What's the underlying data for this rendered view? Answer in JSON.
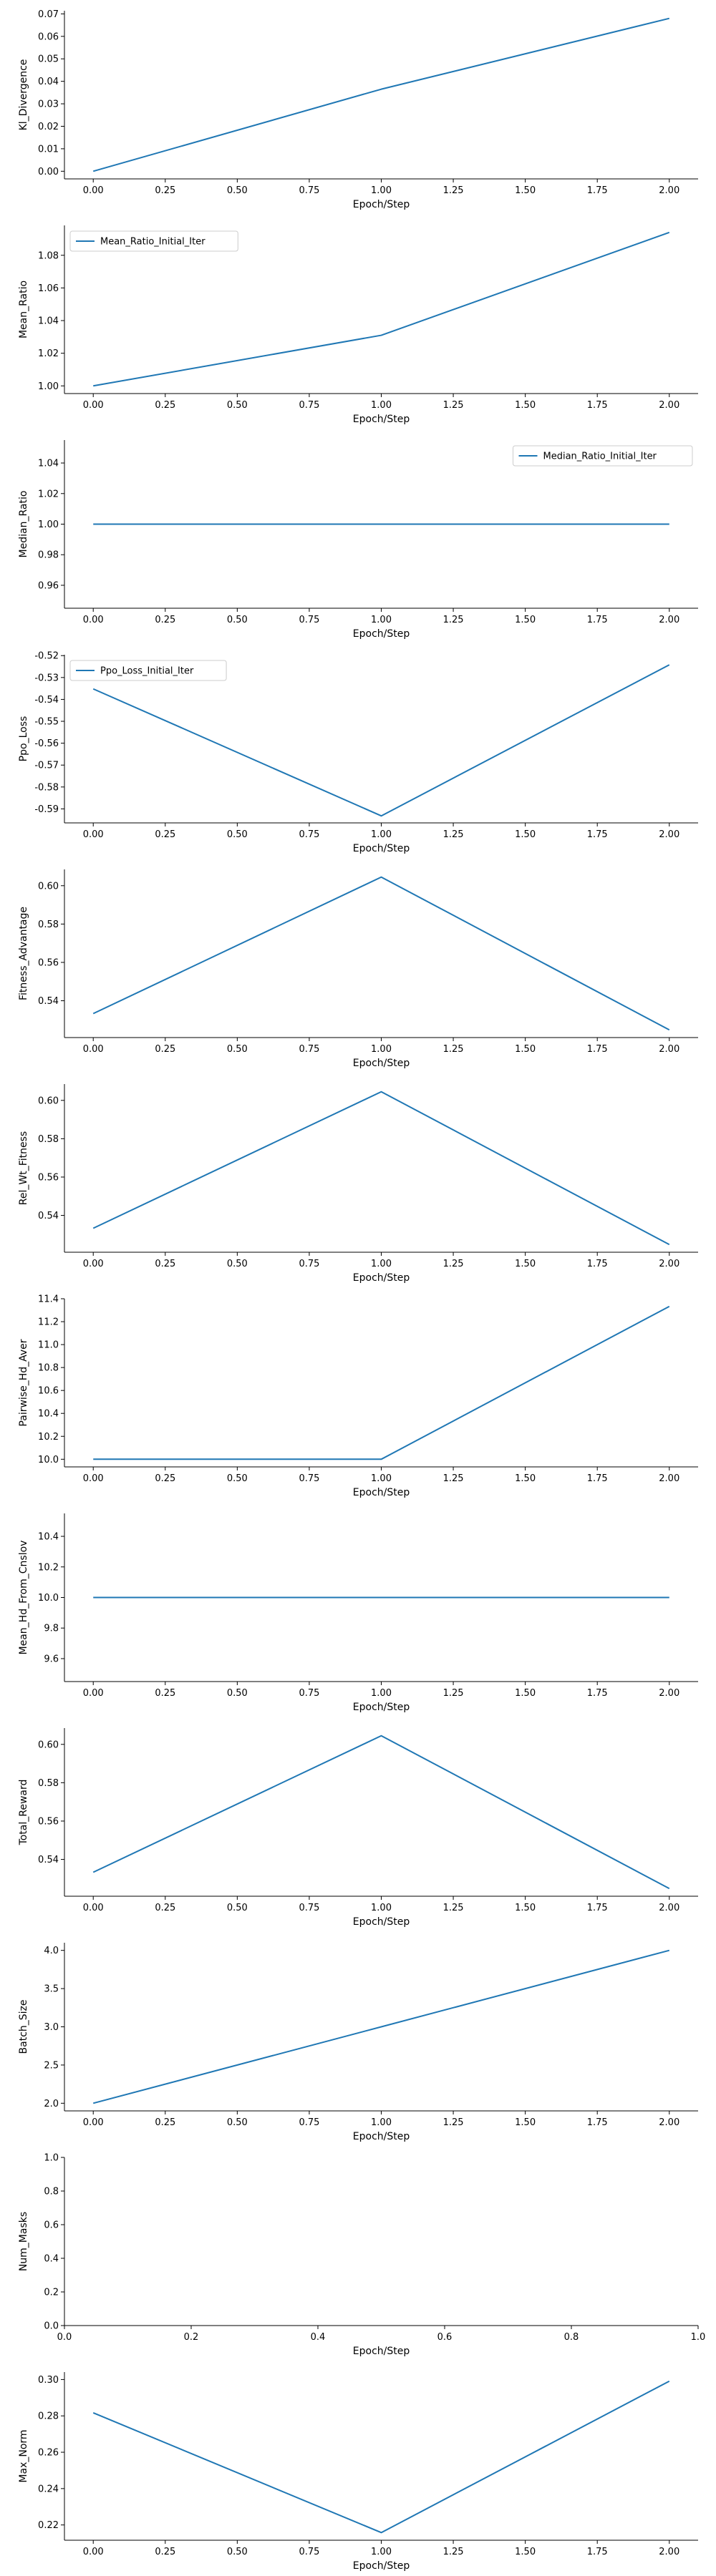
{
  "chart_data": [
    {
      "type": "line",
      "xlabel": "Epoch/Step",
      "ylabel": "Kl_Divergence",
      "xlim": [
        -0.1,
        2.1
      ],
      "ylim": [
        -0.0034,
        0.0714
      ],
      "xticks": [
        "0.00",
        "0.25",
        "0.50",
        "0.75",
        "1.00",
        "1.25",
        "1.50",
        "1.75",
        "2.00"
      ],
      "yticks": [
        "0.00",
        "0.01",
        "0.02",
        "0.03",
        "0.04",
        "0.05",
        "0.06",
        "0.07"
      ],
      "legend": null,
      "series": [
        {
          "x": [
            0,
            1,
            2
          ],
          "values": [
            0.0,
            0.0365,
            0.068
          ]
        }
      ]
    },
    {
      "type": "line",
      "xlabel": "Epoch/Step",
      "ylabel": "Mean_Ratio",
      "xlim": [
        -0.1,
        2.1
      ],
      "ylim": [
        0.9953,
        1.0983
      ],
      "xticks": [
        "0.00",
        "0.25",
        "0.50",
        "0.75",
        "1.00",
        "1.25",
        "1.50",
        "1.75",
        "2.00"
      ],
      "yticks": [
        "1.00",
        "1.02",
        "1.04",
        "1.06",
        "1.08"
      ],
      "legend": "upper-left",
      "series": [
        {
          "name": "Mean_Ratio_Initial_Iter",
          "x": [
            0,
            1,
            2
          ],
          "values": [
            1.0,
            1.031,
            1.094
          ]
        }
      ]
    },
    {
      "type": "line",
      "xlabel": "Epoch/Step",
      "ylabel": "Median_Ratio",
      "xlim": [
        -0.1,
        2.1
      ],
      "ylim": [
        0.945,
        1.055
      ],
      "xticks": [
        "0.00",
        "0.25",
        "0.50",
        "0.75",
        "1.00",
        "1.25",
        "1.50",
        "1.75",
        "2.00"
      ],
      "yticks": [
        "0.96",
        "0.98",
        "1.00",
        "1.02",
        "1.04"
      ],
      "legend": "upper-right",
      "series": [
        {
          "name": "Median_Ratio_Initial_Iter",
          "x": [
            0,
            1,
            2
          ],
          "values": [
            1.0,
            1.0,
            1.0
          ]
        }
      ]
    },
    {
      "type": "line",
      "xlabel": "Epoch/Step",
      "ylabel": "Ppo_Loss",
      "xlim": [
        -0.1,
        2.1
      ],
      "ylim": [
        -0.5964,
        -0.5196
      ],
      "xticks": [
        "0.00",
        "0.25",
        "0.50",
        "0.75",
        "1.00",
        "1.25",
        "1.50",
        "1.75",
        "2.00"
      ],
      "yticks": [
        "-0.59",
        "-0.58",
        "-0.57",
        "-0.56",
        "-0.55",
        "-0.54",
        "-0.53",
        "-0.52"
      ],
      "legend": "upper-left",
      "series": [
        {
          "name": "Ppo_Loss_Initial_Iter",
          "x": [
            0,
            1,
            2
          ],
          "values": [
            -0.5352,
            -0.5932,
            -0.5242
          ]
        }
      ]
    },
    {
      "type": "line",
      "xlabel": "Epoch/Step",
      "ylabel": "Fitness_Advantage",
      "xlim": [
        -0.1,
        2.1
      ],
      "ylim": [
        0.5208,
        0.6085
      ],
      "xticks": [
        "0.00",
        "0.25",
        "0.50",
        "0.75",
        "1.00",
        "1.25",
        "1.50",
        "1.75",
        "2.00"
      ],
      "yticks": [
        "0.54",
        "0.56",
        "0.58",
        "0.60"
      ],
      "legend": null,
      "series": [
        {
          "x": [
            0,
            1,
            2
          ],
          "values": [
            0.5333,
            0.6045,
            0.5248
          ]
        }
      ]
    },
    {
      "type": "line",
      "xlabel": "Epoch/Step",
      "ylabel": "Rel_Wt_Fitness",
      "xlim": [
        -0.1,
        2.1
      ],
      "ylim": [
        0.5208,
        0.6085
      ],
      "xticks": [
        "0.00",
        "0.25",
        "0.50",
        "0.75",
        "1.00",
        "1.25",
        "1.50",
        "1.75",
        "2.00"
      ],
      "yticks": [
        "0.54",
        "0.56",
        "0.58",
        "0.60"
      ],
      "legend": null,
      "series": [
        {
          "x": [
            0,
            1,
            2
          ],
          "values": [
            0.5333,
            0.6045,
            0.5248
          ]
        }
      ]
    },
    {
      "type": "line",
      "xlabel": "Epoch/Step",
      "ylabel": "Pairwise_Hd_Aver",
      "xlim": [
        -0.1,
        2.1
      ],
      "ylim": [
        9.9333,
        11.4
      ],
      "xticks": [
        "0.00",
        "0.25",
        "0.50",
        "0.75",
        "1.00",
        "1.25",
        "1.50",
        "1.75",
        "2.00"
      ],
      "yticks": [
        "10.0",
        "10.2",
        "10.4",
        "10.6",
        "10.8",
        "11.0",
        "11.2",
        "11.4"
      ],
      "legend": null,
      "series": [
        {
          "x": [
            0,
            1,
            2
          ],
          "values": [
            10.0,
            10.0,
            11.333
          ]
        }
      ]
    },
    {
      "type": "line",
      "xlabel": "Epoch/Step",
      "ylabel": "Mean_Hd_From_Cnslov",
      "xlim": [
        -0.1,
        2.1
      ],
      "ylim": [
        9.45,
        10.55
      ],
      "xticks": [
        "0.00",
        "0.25",
        "0.50",
        "0.75",
        "1.00",
        "1.25",
        "1.50",
        "1.75",
        "2.00"
      ],
      "yticks": [
        "9.6",
        "9.8",
        "10.0",
        "10.2",
        "10.4"
      ],
      "legend": null,
      "series": [
        {
          "x": [
            0,
            1,
            2
          ],
          "values": [
            10.0,
            10.0,
            10.0
          ]
        }
      ]
    },
    {
      "type": "line",
      "xlabel": "Epoch/Step",
      "ylabel": "Total_Reward",
      "xlim": [
        -0.1,
        2.1
      ],
      "ylim": [
        0.5208,
        0.6085
      ],
      "xticks": [
        "0.00",
        "0.25",
        "0.50",
        "0.75",
        "1.00",
        "1.25",
        "1.50",
        "1.75",
        "2.00"
      ],
      "yticks": [
        "0.54",
        "0.56",
        "0.58",
        "0.60"
      ],
      "legend": null,
      "series": [
        {
          "x": [
            0,
            1,
            2
          ],
          "values": [
            0.5333,
            0.6045,
            0.5248
          ]
        }
      ]
    },
    {
      "type": "line",
      "xlabel": "Epoch/Step",
      "ylabel": "Batch_Size",
      "xlim": [
        -0.1,
        2.1
      ],
      "ylim": [
        1.9,
        4.1
      ],
      "xticks": [
        "0.00",
        "0.25",
        "0.50",
        "0.75",
        "1.00",
        "1.25",
        "1.50",
        "1.75",
        "2.00"
      ],
      "yticks": [
        "2.0",
        "2.5",
        "3.0",
        "3.5",
        "4.0"
      ],
      "legend": null,
      "series": [
        {
          "x": [
            0,
            1,
            2
          ],
          "values": [
            2,
            3,
            4
          ]
        }
      ]
    },
    {
      "type": "line",
      "xlabel": "Epoch/Step",
      "ylabel": "Num_Masks",
      "xlim": [
        0.0,
        1.0
      ],
      "ylim": [
        0.0,
        1.0
      ],
      "xticks": [
        "0.0",
        "0.2",
        "0.4",
        "0.6",
        "0.8",
        "1.0"
      ],
      "yticks": [
        "0.0",
        "0.2",
        "0.4",
        "0.6",
        "0.8",
        "1.0"
      ],
      "legend": null,
      "series": []
    },
    {
      "type": "line",
      "xlabel": "Epoch/Step",
      "ylabel": "Max_Norm",
      "xlim": [
        -0.1,
        2.1
      ],
      "ylim": [
        0.2116,
        0.3041
      ],
      "xticks": [
        "0.00",
        "0.25",
        "0.50",
        "0.75",
        "1.00",
        "1.25",
        "1.50",
        "1.75",
        "2.00"
      ],
      "yticks": [
        "0.22",
        "0.24",
        "0.26",
        "0.28",
        "0.30"
      ],
      "legend": null,
      "series": [
        {
          "x": [
            0,
            1,
            2
          ],
          "values": [
            0.2817,
            0.2158,
            0.2991
          ]
        }
      ]
    }
  ],
  "style": {
    "line_color": "#1f77b4",
    "axis_color": "#000000",
    "background": "#ffffff"
  }
}
